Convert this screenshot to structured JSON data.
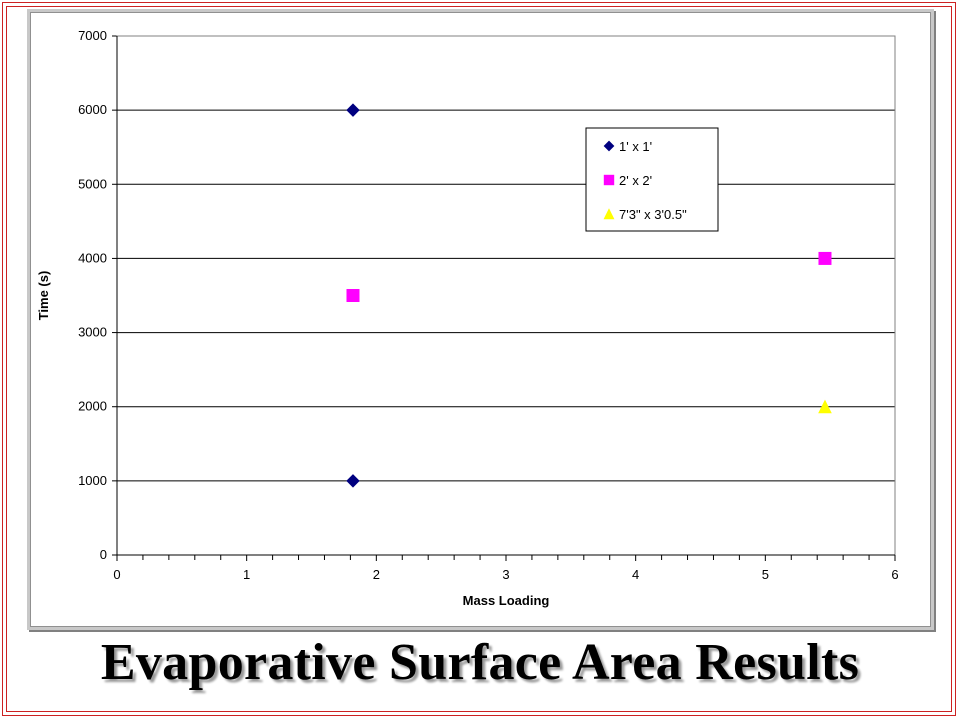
{
  "slide": {
    "title": "Evaporative Surface Area Results"
  },
  "colors": {
    "frame": "#cc2222",
    "series_1": "#000080",
    "series_2": "#ff00ff",
    "series_3": "#ffff00"
  },
  "chart_data": {
    "type": "scatter",
    "title": "",
    "xlabel": "Mass Loading",
    "ylabel": "Time (s)",
    "xlim": [
      0,
      6
    ],
    "ylim": [
      0,
      7000
    ],
    "x_ticks": [
      "0",
      "1",
      "2",
      "3",
      "4",
      "5",
      "6"
    ],
    "y_ticks": [
      "0",
      "1000",
      "2000",
      "3000",
      "4000",
      "5000",
      "6000",
      "7000"
    ],
    "grid": "horizontal major gridlines",
    "legend_position": "top-right",
    "series": [
      {
        "name": "1' x 1'",
        "marker": "diamond",
        "color": "#000080",
        "points": [
          {
            "x": 1.82,
            "y": 6000
          },
          {
            "x": 1.82,
            "y": 1000
          }
        ]
      },
      {
        "name": "2' x 2'",
        "marker": "square",
        "color": "#ff00ff",
        "points": [
          {
            "x": 1.82,
            "y": 3500
          },
          {
            "x": 5.46,
            "y": 4000
          }
        ]
      },
      {
        "name": "7'3\" x 3'0.5\"",
        "marker": "triangle",
        "color": "#ffff00",
        "points": [
          {
            "x": 5.46,
            "y": 2000
          }
        ]
      }
    ]
  }
}
